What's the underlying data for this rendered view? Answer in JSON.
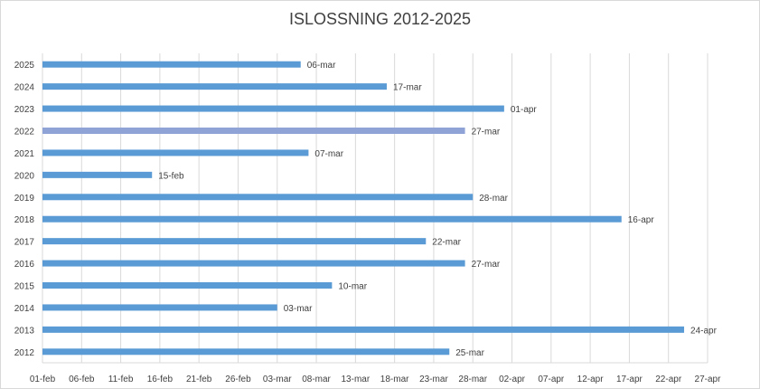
{
  "chart_data": {
    "type": "bar",
    "orientation": "horizontal",
    "title": "ISLOSSNING 2012-2025",
    "categories": [
      "2025",
      "2024",
      "2023",
      "2022",
      "2021",
      "2020",
      "2019",
      "2018",
      "2017",
      "2016",
      "2015",
      "2014",
      "2013",
      "2012"
    ],
    "values": [
      "06-mar",
      "17-mar",
      "01-apr",
      "27-mar",
      "07-mar",
      "15-feb",
      "28-mar",
      "16-apr",
      "22-mar",
      "27-mar",
      "10-mar",
      "03-mar",
      "24-apr",
      "25-mar"
    ],
    "x_tick_labels": [
      "01-feb",
      "06-feb",
      "11-feb",
      "16-feb",
      "21-feb",
      "26-feb",
      "03-mar",
      "08-mar",
      "13-mar",
      "18-mar",
      "23-mar",
      "28-mar",
      "02-apr",
      "07-apr",
      "12-apr",
      "17-apr",
      "22-apr",
      "27-apr"
    ],
    "xlim": [
      "01-feb",
      "27-apr"
    ],
    "grid": "vertical",
    "legend": "none",
    "colors": {
      "bar": "#5b9bd5",
      "highlight_bar": "#8fa3d6",
      "grid": "#d9d9d9",
      "text": "#404040"
    },
    "highlight_category": "2022"
  }
}
